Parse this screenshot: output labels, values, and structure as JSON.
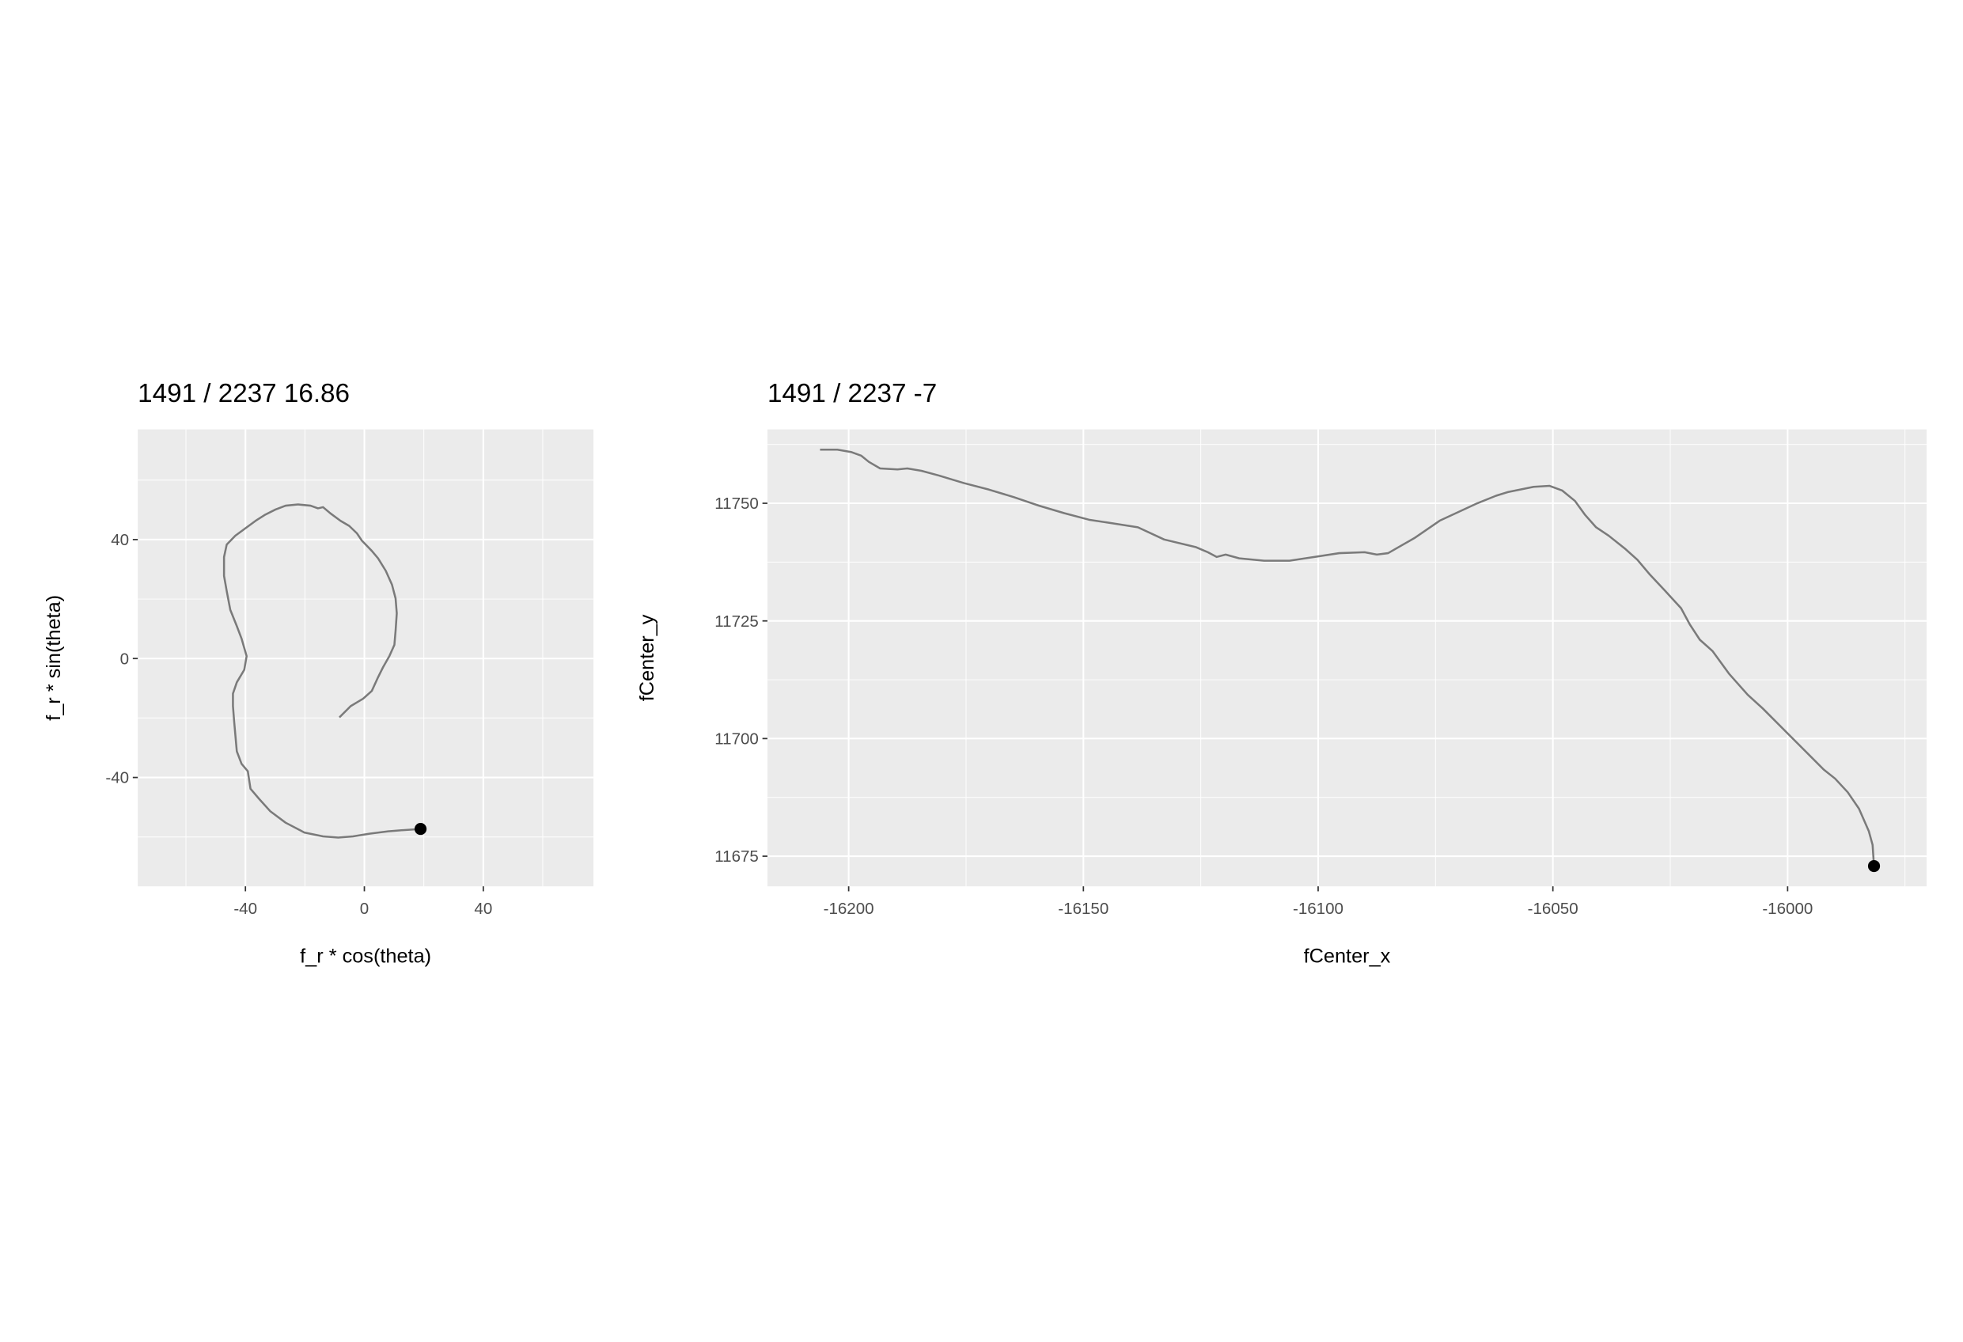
{
  "chart_data": [
    {
      "type": "line",
      "title": "1491 / 2237 16.86",
      "xlabel": "f_r * cos(theta)",
      "ylabel": "f_r * sin(theta)",
      "x": [
        -8.4,
        -4.6,
        -0.4,
        2.5,
        4.6,
        6.3,
        8.4,
        10.1,
        10.5,
        10.9,
        10.5,
        9.3,
        7.2,
        4.6,
        2.5,
        -0.8,
        -2.5,
        -5.1,
        -8.0,
        -11.4,
        -13.9,
        -15.6,
        -18.1,
        -22.3,
        -26.5,
        -29.9,
        -33.3,
        -36.6,
        -40.0,
        -43.4,
        -46.3,
        -47.2,
        -47.2,
        -46.3,
        -45.1,
        -42.9,
        -41.3,
        -39.6,
        -40.4,
        -42.9,
        -44.2,
        -44.2,
        -43.8,
        -42.9,
        -41.3,
        -39.2,
        -38.3,
        -35.4,
        -31.6,
        -26.5,
        -20.2,
        -13.9,
        -8.8,
        -3.8,
        1.7,
        8.0,
        13.1,
        18.9
      ],
      "values": [
        -19.8,
        -16.0,
        -13.5,
        -10.9,
        -6.3,
        -2.9,
        0.8,
        4.6,
        9.3,
        15.2,
        20.2,
        24.8,
        29.5,
        33.7,
        36.2,
        39.6,
        42.1,
        44.6,
        46.3,
        48.8,
        50.9,
        50.5,
        51.4,
        51.8,
        51.4,
        50.1,
        48.4,
        46.3,
        43.8,
        41.3,
        38.3,
        34.1,
        27.8,
        22.7,
        16.4,
        10.9,
        6.7,
        0.8,
        -3.8,
        -8.0,
        -11.8,
        -16.0,
        -21.1,
        -31.2,
        -35.4,
        -37.9,
        -43.8,
        -47.2,
        -51.4,
        -55.2,
        -58.5,
        -59.8,
        -60.2,
        -59.8,
        -58.9,
        -58.1,
        -57.7,
        -57.3
      ],
      "color": "#7a7a7a",
      "end_marker": true,
      "xlim": [
        -76.2,
        77.05
      ],
      "ylim": [
        -76.6,
        77.05
      ],
      "xticks": [
        -40,
        0,
        40
      ],
      "yticks": [
        -40,
        0,
        40
      ],
      "xminor": [
        -60,
        -20,
        20,
        60
      ],
      "yminor": [
        -60,
        -20,
        20,
        60
      ],
      "grid": true
    },
    {
      "type": "line",
      "title": "1491 / 2237 -7",
      "xlabel": "fCenter_x",
      "ylabel": "fCenter_y",
      "x": [
        -16206.1,
        -16202.4,
        -16199.5,
        -16197.3,
        -16195.7,
        -16193.3,
        -16189.6,
        -16187.5,
        -16184.5,
        -16180.8,
        -16175.5,
        -16170.1,
        -16164.8,
        -16159.5,
        -16154.1,
        -16148.8,
        -16143.5,
        -16138.4,
        -16132.8,
        -16126.1,
        -16123.5,
        -16121.6,
        -16119.7,
        -16116.8,
        -16111.5,
        -16106.1,
        -16100.8,
        -16095.5,
        -16090.1,
        -16087.5,
        -16085.1,
        -16079.5,
        -16074.1,
        -16066.1,
        -16062.1,
        -16059.5,
        -16054.1,
        -16050.7,
        -16048.0,
        -16045.3,
        -16043.2,
        -16040.8,
        -16038.1,
        -16034.7,
        -16032.0,
        -16029.3,
        -16026.1,
        -16022.7,
        -16020.8,
        -16018.7,
        -16016.0,
        -16012.5,
        -16008.5,
        -16005.3,
        -16000.0,
        -15996.0,
        -15992.3,
        -15989.9,
        -15987.2,
        -15984.8,
        -15982.7,
        -15981.9,
        -15981.6
      ],
      "values": [
        11761.4,
        11761.4,
        11760.9,
        11760.1,
        11758.8,
        11757.4,
        11757.2,
        11757.4,
        11756.9,
        11755.9,
        11754.3,
        11752.9,
        11751.3,
        11749.5,
        11747.9,
        11746.5,
        11745.7,
        11744.9,
        11742.3,
        11740.7,
        11739.6,
        11738.6,
        11739.1,
        11738.3,
        11737.8,
        11737.8,
        11738.6,
        11739.4,
        11739.6,
        11739.1,
        11739.4,
        11742.6,
        11746.3,
        11750.0,
        11751.6,
        11752.4,
        11753.5,
        11753.7,
        11752.7,
        11750.5,
        11747.6,
        11744.9,
        11743.1,
        11740.4,
        11738.0,
        11734.8,
        11731.4,
        11727.7,
        11724.2,
        11721.0,
        11718.6,
        11713.8,
        11709.3,
        11706.4,
        11701.1,
        11697.1,
        11693.4,
        11691.5,
        11688.6,
        11685.1,
        11680.3,
        11677.4,
        11672.9
      ],
      "color": "#7a7a7a",
      "end_marker": true,
      "xlim": [
        -16217.3,
        -15970.4
      ],
      "ylim": [
        11668.6,
        11765.7
      ],
      "xticks": [
        -16200,
        -16150,
        -16100,
        -16050,
        -16000
      ],
      "yticks": [
        11675,
        11700,
        11725,
        11750
      ],
      "xminor": [
        -16175,
        -16125,
        -16075,
        -16025,
        -15975
      ],
      "yminor": [
        11687.5,
        11712.5,
        11737.5,
        11762.5
      ],
      "grid": true
    }
  ]
}
